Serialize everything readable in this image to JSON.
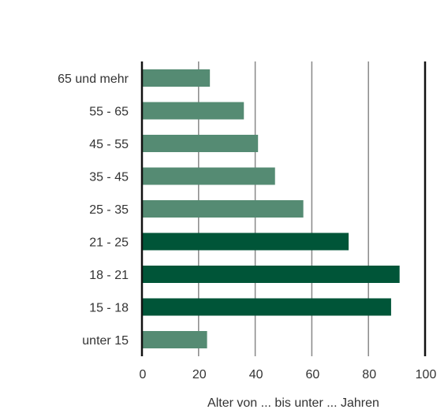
{
  "chart_data": {
    "type": "bar",
    "orientation": "horizontal",
    "categories": [
      "65 und mehr",
      "55 - 65",
      "45 - 55",
      "35 - 45",
      "25 - 35",
      "21 - 25",
      "18 - 21",
      "15 - 18",
      "unter 15"
    ],
    "values": [
      24,
      36,
      41,
      47,
      57,
      73,
      91,
      88,
      23
    ],
    "highlight": [
      false,
      false,
      false,
      false,
      false,
      true,
      true,
      true,
      false
    ],
    "xlim": [
      0,
      100
    ],
    "xticks": [
      "0",
      "20",
      "40",
      "60",
      "80",
      "100"
    ],
    "xticks_values": [
      0,
      20,
      40,
      60,
      80,
      100
    ],
    "xlabel": "Alter von ... bis unter ... Jahren",
    "grid": true,
    "colors": {
      "normal": "#558b73",
      "highlight": "#005538",
      "grid": "#888888",
      "axis": "#111111"
    }
  }
}
